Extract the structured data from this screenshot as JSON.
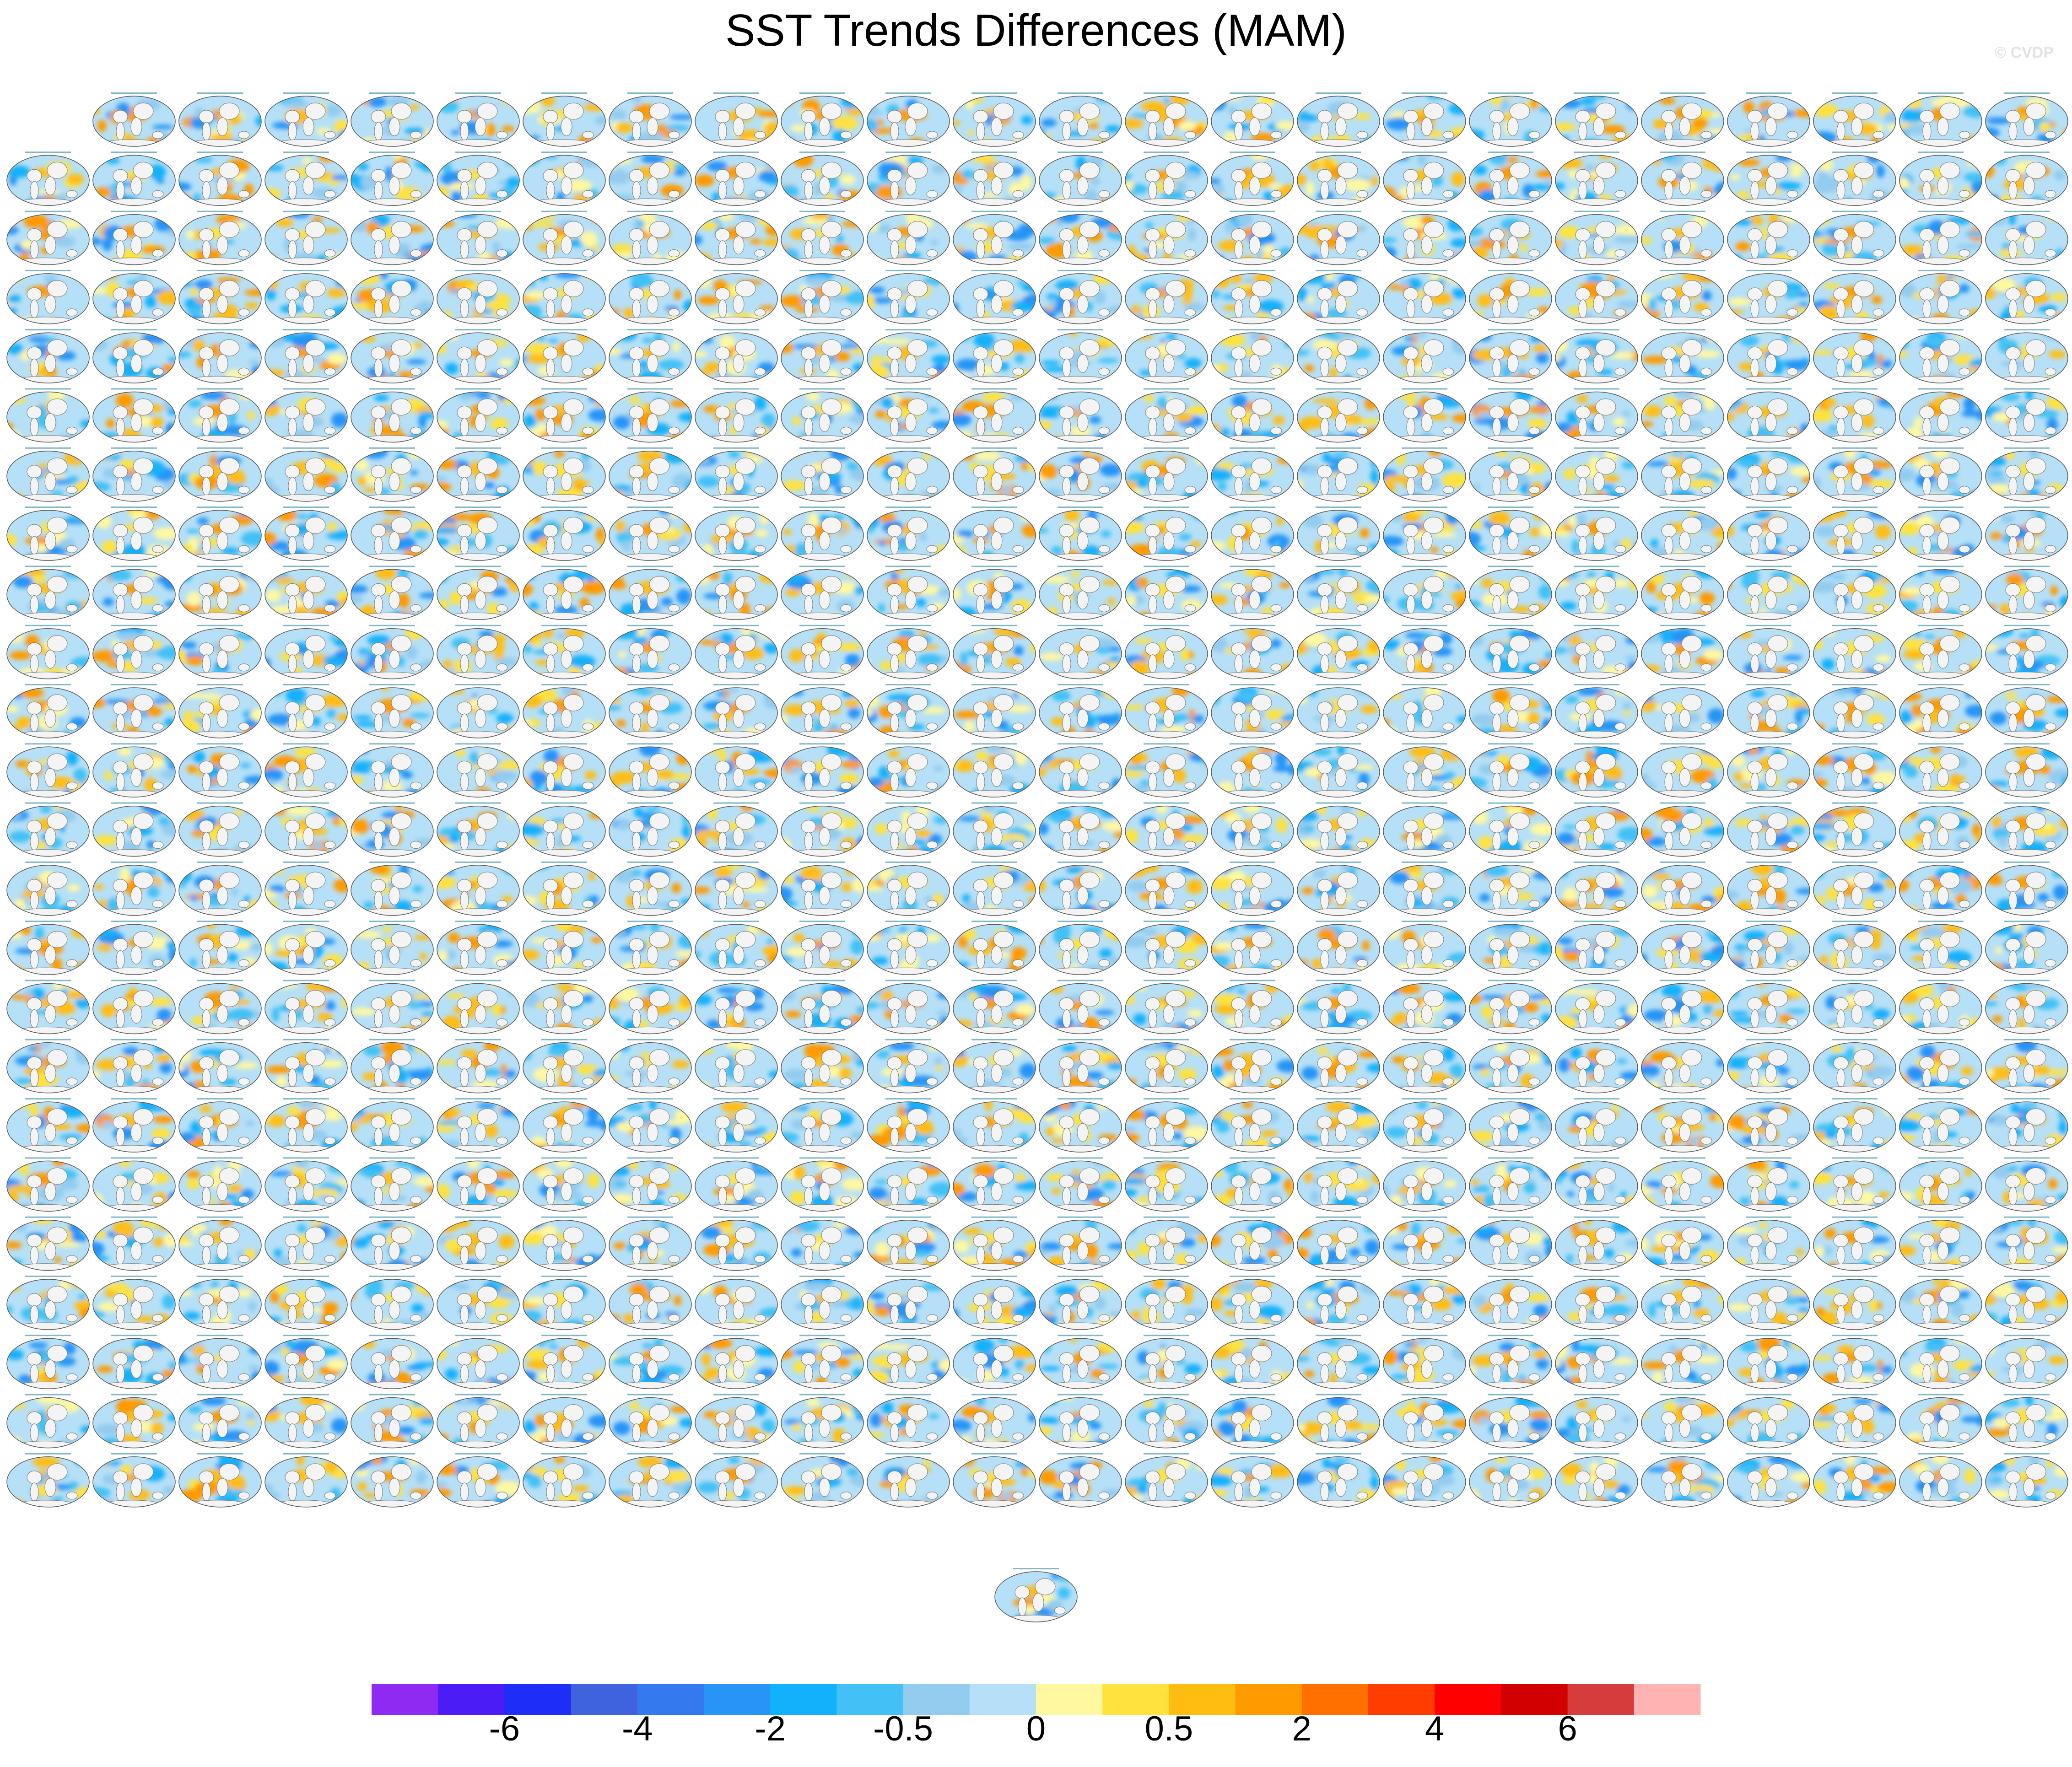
{
  "figure": {
    "title": "SST Trends Differences (MAM)",
    "watermark": "© CVDP"
  },
  "grid": {
    "rows": 24,
    "columns": 24,
    "empty_cells": [
      [
        0,
        0
      ]
    ],
    "extra_bottom_panels": 1
  },
  "colorbar": {
    "colors": [
      "#8f2af2",
      "#4b1cf5",
      "#1e2ef6",
      "#3f63de",
      "#3479ee",
      "#2894f7",
      "#12b1fb",
      "#43c1f6",
      "#93ccef",
      "#b6e0f7",
      "#fff8a1",
      "#ffe23e",
      "#ffbd12",
      "#ff9a00",
      "#ff7000",
      "#ff3d00",
      "#ff0000",
      "#d20000",
      "#d73c3c",
      "#ffb3b3"
    ],
    "tick_labels": [
      "-6",
      "-4",
      "-2",
      "-0.5",
      "0",
      "0.5",
      "2",
      "4",
      "6"
    ]
  }
}
